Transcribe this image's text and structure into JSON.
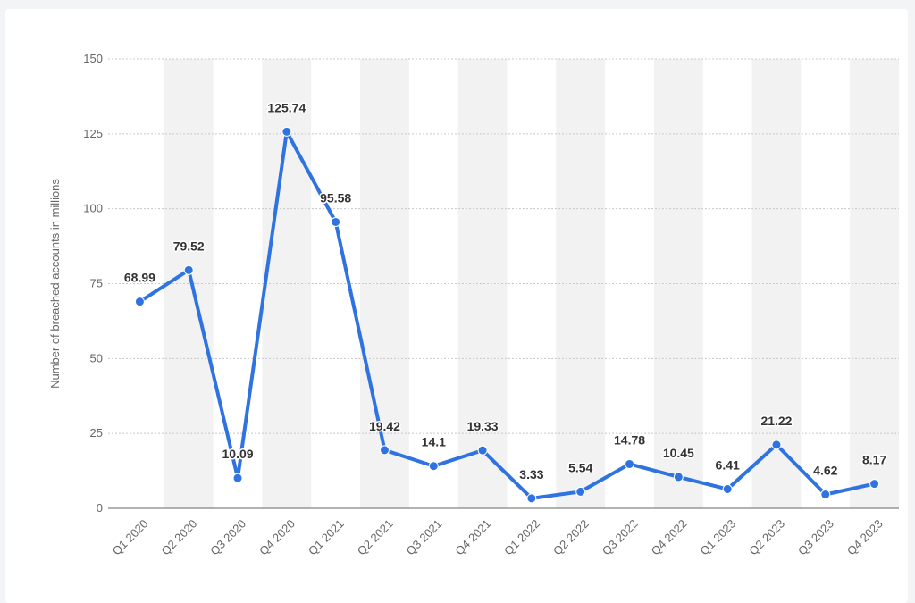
{
  "colors": {
    "line": "#2f73e0",
    "band": "#f2f2f2",
    "grid": "#c8c8c8",
    "axis": "#666666"
  },
  "chart_data": {
    "type": "line",
    "title": "",
    "xlabel": "",
    "ylabel": "Number of breached accounts in millions",
    "ylim": [
      0,
      150
    ],
    "yticks": [
      0,
      25,
      50,
      75,
      100,
      125,
      150
    ],
    "grid": true,
    "categories": [
      "Q1 2020",
      "Q2 2020",
      "Q3 2020",
      "Q4 2020",
      "Q1 2021",
      "Q2 2021",
      "Q3 2021",
      "Q4 2021",
      "Q1 2022",
      "Q2 2022",
      "Q3 2022",
      "Q4 2022",
      "Q1 2023",
      "Q2 2023",
      "Q3 2023",
      "Q4 2023"
    ],
    "series": [
      {
        "values": [
          68.99,
          79.52,
          10.09,
          125.74,
          95.58,
          19.42,
          14.1,
          19.33,
          3.33,
          5.54,
          14.78,
          10.45,
          6.41,
          21.22,
          4.62,
          8.17
        ],
        "labels": [
          "68.99",
          "79.52",
          "10.09",
          "125.74",
          "95.58",
          "19.42",
          "14.1",
          "19.33",
          "3.33",
          "5.54",
          "14.78",
          "10.45",
          "6.41",
          "21.22",
          "4.62",
          "8.17"
        ]
      }
    ]
  }
}
